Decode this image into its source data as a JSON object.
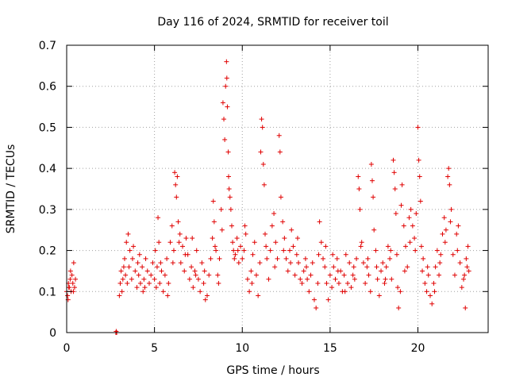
{
  "chart_data": {
    "type": "scatter",
    "title": "Day 116 of 2024, SRMTID for receiver toil",
    "xlabel": "GPS time / hours",
    "ylabel": "SRMTID / TECUs",
    "xlim": [
      0,
      24
    ],
    "ylim": [
      0,
      0.7
    ],
    "x_ticks": [
      0,
      5,
      10,
      15,
      20
    ],
    "y_ticks": [
      0,
      0.1,
      0.2,
      0.3,
      0.4,
      0.5,
      0.6,
      0.7
    ],
    "x_tick_labels": [
      "0",
      "5",
      "10",
      "15",
      "20"
    ],
    "y_tick_labels": [
      "0",
      "0.1",
      "0.2",
      "0.3",
      "0.4",
      "0.5",
      "0.6",
      "0.7"
    ],
    "grid": true,
    "marker": "+",
    "color": "#e00000",
    "series": [
      {
        "name": "SRMTID",
        "points": [
          [
            0.0,
            0.1
          ],
          [
            0.05,
            0.09
          ],
          [
            0.1,
            0.12
          ],
          [
            0.15,
            0.11
          ],
          [
            0.2,
            0.13
          ],
          [
            0.25,
            0.1
          ],
          [
            0.3,
            0.14
          ],
          [
            0.35,
            0.12
          ],
          [
            0.4,
            0.17
          ],
          [
            0.45,
            0.11
          ],
          [
            0.5,
            0.13
          ],
          [
            0.08,
            0.08
          ],
          [
            0.22,
            0.15
          ],
          [
            0.38,
            0.1
          ],
          [
            2.8,
            0.0
          ],
          [
            2.82,
            0.003
          ],
          [
            2.85,
            0.0
          ],
          [
            3.0,
            0.09
          ],
          [
            3.05,
            0.12
          ],
          [
            3.1,
            0.15
          ],
          [
            3.15,
            0.1
          ],
          [
            3.2,
            0.13
          ],
          [
            3.3,
            0.18
          ],
          [
            3.35,
            0.14
          ],
          [
            3.4,
            0.22
          ],
          [
            3.45,
            0.12
          ],
          [
            3.5,
            0.24
          ],
          [
            3.55,
            0.16
          ],
          [
            3.6,
            0.2
          ],
          [
            3.7,
            0.13
          ],
          [
            3.75,
            0.18
          ],
          [
            3.8,
            0.21
          ],
          [
            3.9,
            0.15
          ],
          [
            4.0,
            0.11
          ],
          [
            4.05,
            0.17
          ],
          [
            4.1,
            0.14
          ],
          [
            4.2,
            0.12
          ],
          [
            4.3,
            0.16
          ],
          [
            4.35,
            0.1
          ],
          [
            4.4,
            0.13
          ],
          [
            4.5,
            0.18
          ],
          [
            4.6,
            0.15
          ],
          [
            4.7,
            0.12
          ],
          [
            4.8,
            0.14
          ],
          [
            4.9,
            0.17
          ],
          [
            5.0,
            0.13
          ],
          [
            5.05,
            0.2
          ],
          [
            5.1,
            0.11
          ],
          [
            5.15,
            0.16
          ],
          [
            5.2,
            0.28
          ],
          [
            5.25,
            0.22
          ],
          [
            5.3,
            0.12
          ],
          [
            5.4,
            0.15
          ],
          [
            5.5,
            0.1
          ],
          [
            5.6,
            0.14
          ],
          [
            5.7,
            0.18
          ],
          [
            5.8,
            0.12
          ],
          [
            5.9,
            0.22
          ],
          [
            6.0,
            0.26
          ],
          [
            6.05,
            0.17
          ],
          [
            6.1,
            0.2
          ],
          [
            6.15,
            0.39
          ],
          [
            6.2,
            0.36
          ],
          [
            6.25,
            0.33
          ],
          [
            6.3,
            0.38
          ],
          [
            6.35,
            0.27
          ],
          [
            6.4,
            0.22
          ],
          [
            6.5,
            0.17
          ],
          [
            6.6,
            0.21
          ],
          [
            6.7,
            0.15
          ],
          [
            6.8,
            0.23
          ],
          [
            6.9,
            0.19
          ],
          [
            7.0,
            0.13
          ],
          [
            7.1,
            0.16
          ],
          [
            7.2,
            0.11
          ],
          [
            7.3,
            0.15
          ],
          [
            7.4,
            0.2
          ],
          [
            7.5,
            0.13
          ],
          [
            7.6,
            0.1
          ],
          [
            7.7,
            0.17
          ],
          [
            7.8,
            0.12
          ],
          [
            7.9,
            0.08
          ],
          [
            8.0,
            0.09
          ],
          [
            8.1,
            0.14
          ],
          [
            8.2,
            0.18
          ],
          [
            8.3,
            0.23
          ],
          [
            8.35,
            0.32
          ],
          [
            8.4,
            0.27
          ],
          [
            8.5,
            0.2
          ],
          [
            8.6,
            0.14
          ],
          [
            8.65,
            0.12
          ],
          [
            8.7,
            0.18
          ],
          [
            8.8,
            0.3
          ],
          [
            8.85,
            0.25
          ],
          [
            8.9,
            0.56
          ],
          [
            8.95,
            0.52
          ],
          [
            9.0,
            0.47
          ],
          [
            9.05,
            0.6
          ],
          [
            9.1,
            0.66
          ],
          [
            9.12,
            0.62
          ],
          [
            9.15,
            0.55
          ],
          [
            9.2,
            0.44
          ],
          [
            9.22,
            0.38
          ],
          [
            9.25,
            0.35
          ],
          [
            9.3,
            0.33
          ],
          [
            9.35,
            0.3
          ],
          [
            9.4,
            0.26
          ],
          [
            9.45,
            0.22
          ],
          [
            9.5,
            0.2
          ],
          [
            9.6,
            0.19
          ],
          [
            9.7,
            0.23
          ],
          [
            9.8,
            0.17
          ],
          [
            9.9,
            0.21
          ],
          [
            10.0,
            0.18
          ],
          [
            10.1,
            0.2
          ],
          [
            10.2,
            0.24
          ],
          [
            10.3,
            0.13
          ],
          [
            10.4,
            0.1
          ],
          [
            10.5,
            0.15
          ],
          [
            10.6,
            0.19
          ],
          [
            10.7,
            0.22
          ],
          [
            10.8,
            0.14
          ],
          [
            10.9,
            0.09
          ],
          [
            11.0,
            0.17
          ],
          [
            11.05,
            0.44
          ],
          [
            11.1,
            0.52
          ],
          [
            11.15,
            0.5
          ],
          [
            11.2,
            0.41
          ],
          [
            11.25,
            0.36
          ],
          [
            11.3,
            0.24
          ],
          [
            11.4,
            0.18
          ],
          [
            11.5,
            0.13
          ],
          [
            11.6,
            0.2
          ],
          [
            11.7,
            0.26
          ],
          [
            11.8,
            0.29
          ],
          [
            11.9,
            0.22
          ],
          [
            12.0,
            0.18
          ],
          [
            12.1,
            0.48
          ],
          [
            12.15,
            0.44
          ],
          [
            12.2,
            0.33
          ],
          [
            12.3,
            0.27
          ],
          [
            12.4,
            0.23
          ],
          [
            12.5,
            0.18
          ],
          [
            12.6,
            0.15
          ],
          [
            12.7,
            0.2
          ],
          [
            12.8,
            0.25
          ],
          [
            12.9,
            0.21
          ],
          [
            13.0,
            0.14
          ],
          [
            13.1,
            0.19
          ],
          [
            13.2,
            0.17
          ],
          [
            13.3,
            0.13
          ],
          [
            13.4,
            0.12
          ],
          [
            13.5,
            0.15
          ],
          [
            13.6,
            0.18
          ],
          [
            13.7,
            0.13
          ],
          [
            13.8,
            0.1
          ],
          [
            13.9,
            0.14
          ],
          [
            14.0,
            0.17
          ],
          [
            14.1,
            0.08
          ],
          [
            14.2,
            0.06
          ],
          [
            14.3,
            0.12
          ],
          [
            14.4,
            0.27
          ],
          [
            14.5,
            0.22
          ],
          [
            14.6,
            0.18
          ],
          [
            14.7,
            0.16
          ],
          [
            14.8,
            0.12
          ],
          [
            14.9,
            0.08
          ],
          [
            15.0,
            0.14
          ],
          [
            15.1,
            0.11
          ],
          [
            15.2,
            0.16
          ],
          [
            15.3,
            0.13
          ],
          [
            15.4,
            0.18
          ],
          [
            15.5,
            0.12
          ],
          [
            15.6,
            0.15
          ],
          [
            15.7,
            0.1
          ],
          [
            15.8,
            0.14
          ],
          [
            15.9,
            0.19
          ],
          [
            16.0,
            0.12
          ],
          [
            16.1,
            0.17
          ],
          [
            16.2,
            0.11
          ],
          [
            16.3,
            0.14
          ],
          [
            16.4,
            0.13
          ],
          [
            16.5,
            0.18
          ],
          [
            16.6,
            0.38
          ],
          [
            16.65,
            0.35
          ],
          [
            16.7,
            0.3
          ],
          [
            16.8,
            0.22
          ],
          [
            16.9,
            0.17
          ],
          [
            17.0,
            0.12
          ],
          [
            17.1,
            0.16
          ],
          [
            17.2,
            0.14
          ],
          [
            17.3,
            0.1
          ],
          [
            17.35,
            0.41
          ],
          [
            17.4,
            0.37
          ],
          [
            17.45,
            0.33
          ],
          [
            17.5,
            0.25
          ],
          [
            17.6,
            0.2
          ],
          [
            17.7,
            0.13
          ],
          [
            17.8,
            0.09
          ],
          [
            17.9,
            0.15
          ],
          [
            18.0,
            0.17
          ],
          [
            18.1,
            0.12
          ],
          [
            18.2,
            0.16
          ],
          [
            18.3,
            0.21
          ],
          [
            18.4,
            0.18
          ],
          [
            18.5,
            0.13
          ],
          [
            18.6,
            0.42
          ],
          [
            18.65,
            0.39
          ],
          [
            18.7,
            0.35
          ],
          [
            18.75,
            0.29
          ],
          [
            18.8,
            0.19
          ],
          [
            18.9,
            0.06
          ],
          [
            19.0,
            0.1
          ],
          [
            19.05,
            0.31
          ],
          [
            19.1,
            0.36
          ],
          [
            19.2,
            0.26
          ],
          [
            19.3,
            0.21
          ],
          [
            19.4,
            0.16
          ],
          [
            19.5,
            0.28
          ],
          [
            19.6,
            0.3
          ],
          [
            19.7,
            0.26
          ],
          [
            19.8,
            0.23
          ],
          [
            19.9,
            0.29
          ],
          [
            20.0,
            0.5
          ],
          [
            20.05,
            0.42
          ],
          [
            20.1,
            0.38
          ],
          [
            20.15,
            0.32
          ],
          [
            20.2,
            0.21
          ],
          [
            20.3,
            0.18
          ],
          [
            20.4,
            0.12
          ],
          [
            20.5,
            0.1
          ],
          [
            20.6,
            0.14
          ],
          [
            20.7,
            0.09
          ],
          [
            20.8,
            0.07
          ],
          [
            20.9,
            0.12
          ],
          [
            21.0,
            0.16
          ],
          [
            21.1,
            0.2
          ],
          [
            21.2,
            0.14
          ],
          [
            21.3,
            0.19
          ],
          [
            21.4,
            0.24
          ],
          [
            21.5,
            0.28
          ],
          [
            21.6,
            0.25
          ],
          [
            21.7,
            0.38
          ],
          [
            21.75,
            0.4
          ],
          [
            21.8,
            0.36
          ],
          [
            21.9,
            0.3
          ],
          [
            22.0,
            0.19
          ],
          [
            22.1,
            0.14
          ],
          [
            22.2,
            0.24
          ],
          [
            22.3,
            0.26
          ],
          [
            22.4,
            0.17
          ],
          [
            22.5,
            0.11
          ],
          [
            22.6,
            0.13
          ],
          [
            22.7,
            0.06
          ],
          [
            22.75,
            0.18
          ],
          [
            22.8,
            0.16
          ],
          [
            22.85,
            0.21
          ],
          [
            22.9,
            0.15
          ],
          [
            0.12,
            0.11
          ],
          [
            3.25,
            0.16
          ],
          [
            4.15,
            0.19
          ],
          [
            4.45,
            0.11
          ],
          [
            5.35,
            0.17
          ],
          [
            5.75,
            0.09
          ],
          [
            6.45,
            0.24
          ],
          [
            6.75,
            0.19
          ],
          [
            7.15,
            0.23
          ],
          [
            7.35,
            0.14
          ],
          [
            7.85,
            0.15
          ],
          [
            8.45,
            0.21
          ],
          [
            9.55,
            0.18
          ],
          [
            9.75,
            0.2
          ],
          [
            10.15,
            0.26
          ],
          [
            10.55,
            0.12
          ],
          [
            11.35,
            0.21
          ],
          [
            11.85,
            0.16
          ],
          [
            12.35,
            0.2
          ],
          [
            12.75,
            0.17
          ],
          [
            13.15,
            0.23
          ],
          [
            13.65,
            0.16
          ],
          [
            14.35,
            0.19
          ],
          [
            14.75,
            0.21
          ],
          [
            15.15,
            0.19
          ],
          [
            15.45,
            0.15
          ],
          [
            15.85,
            0.1
          ],
          [
            16.35,
            0.16
          ],
          [
            16.75,
            0.21
          ],
          [
            17.15,
            0.18
          ],
          [
            17.65,
            0.16
          ],
          [
            18.15,
            0.13
          ],
          [
            18.45,
            0.2
          ],
          [
            18.85,
            0.11
          ],
          [
            19.25,
            0.15
          ],
          [
            19.55,
            0.22
          ],
          [
            19.85,
            0.2
          ],
          [
            20.25,
            0.15
          ],
          [
            20.55,
            0.16
          ],
          [
            20.95,
            0.1
          ],
          [
            21.25,
            0.17
          ],
          [
            21.55,
            0.22
          ],
          [
            21.85,
            0.27
          ],
          [
            22.25,
            0.2
          ],
          [
            22.65,
            0.14
          ]
        ]
      }
    ]
  }
}
